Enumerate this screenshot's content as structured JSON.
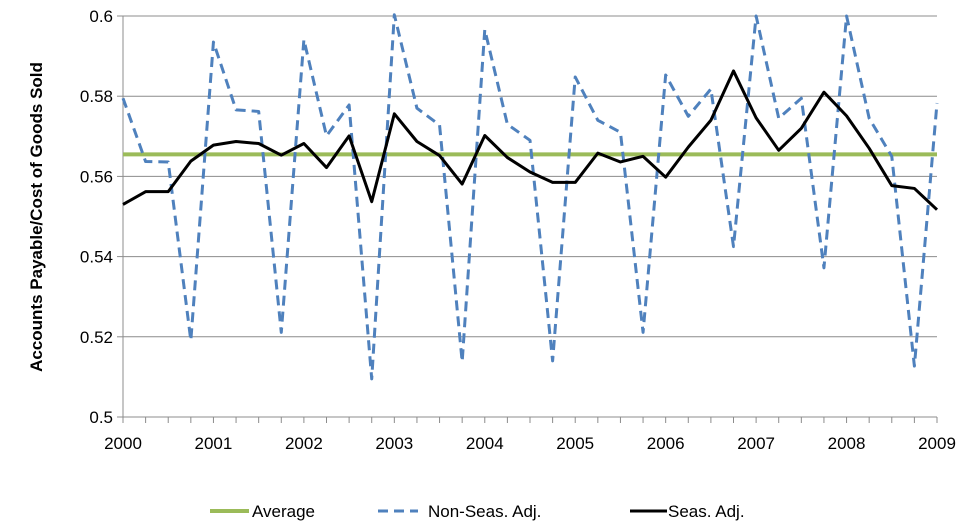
{
  "chart_data": {
    "type": "line",
    "title": "",
    "xlabel": "",
    "ylabel": "Accounts Payable/Cost of Goods Sold",
    "xlim": [
      2000,
      2009
    ],
    "ylim": [
      0.5,
      0.6
    ],
    "x_ticks": [
      "2000",
      "2001",
      "2002",
      "2003",
      "2004",
      "2005",
      "2006",
      "2007",
      "2008",
      "2009"
    ],
    "y_ticks": [
      "0.5",
      "0.52",
      "0.54",
      "0.56",
      "0.58",
      "0.6"
    ],
    "grid": "horizontal",
    "legend_position": "bottom",
    "x": [
      2000,
      2000.25,
      2000.5,
      2000.75,
      2001,
      2001.25,
      2001.5,
      2001.75,
      2002,
      2002.25,
      2002.5,
      2002.75,
      2003,
      2003.25,
      2003.5,
      2003.75,
      2004,
      2004.25,
      2004.5,
      2004.75,
      2005,
      2005.25,
      2005.5,
      2005.75,
      2006,
      2006.25,
      2006.5,
      2006.75,
      2007,
      2007.25,
      2007.5,
      2007.75,
      2008,
      2008.25,
      2008.5,
      2008.75,
      2009
    ],
    "series": [
      {
        "name": "Average",
        "color": "#9bbb59",
        "style": "solid",
        "values": [
          0.5655,
          0.5655,
          0.5655,
          0.5655,
          0.5655,
          0.5655,
          0.5655,
          0.5655,
          0.5655,
          0.5655,
          0.5655,
          0.5655,
          0.5655,
          0.5655,
          0.5655,
          0.5655,
          0.5655,
          0.5655,
          0.5655,
          0.5655,
          0.5655,
          0.5655,
          0.5655,
          0.5655,
          0.5655,
          0.5655,
          0.5655,
          0.5655,
          0.5655,
          0.5655,
          0.5655,
          0.5655,
          0.5655,
          0.5655,
          0.5655,
          0.5655,
          0.5655
        ]
      },
      {
        "name": "Non-Seas. Adj.",
        "color": "#4f81bd",
        "style": "dashed",
        "values": [
          0.5795,
          0.5637,
          0.5636,
          0.5191,
          0.5935,
          0.5766,
          0.5762,
          0.5211,
          0.5941,
          0.5701,
          0.5778,
          0.5095,
          0.6003,
          0.577,
          0.5728,
          0.5138,
          0.5966,
          0.573,
          0.569,
          0.514,
          0.5848,
          0.574,
          0.571,
          0.5211,
          0.5853,
          0.575,
          0.5818,
          0.5425,
          0.6,
          0.5745,
          0.5795,
          0.5372,
          0.6,
          0.5745,
          0.565,
          0.5127,
          0.5783
        ]
      },
      {
        "name": "Seas. Adj.",
        "color": "#000000",
        "style": "solid",
        "values": [
          0.553,
          0.5562,
          0.5562,
          0.5638,
          0.5678,
          0.5687,
          0.5682,
          0.5653,
          0.5682,
          0.5622,
          0.5701,
          0.5537,
          0.5756,
          0.5687,
          0.5652,
          0.5581,
          0.5702,
          0.5647,
          0.5611,
          0.5585,
          0.5585,
          0.5658,
          0.5636,
          0.565,
          0.5598,
          0.5673,
          0.574,
          0.5863,
          0.5746,
          0.5665,
          0.572,
          0.581,
          0.5751,
          0.567,
          0.5577,
          0.557,
          0.5517
        ]
      }
    ]
  }
}
